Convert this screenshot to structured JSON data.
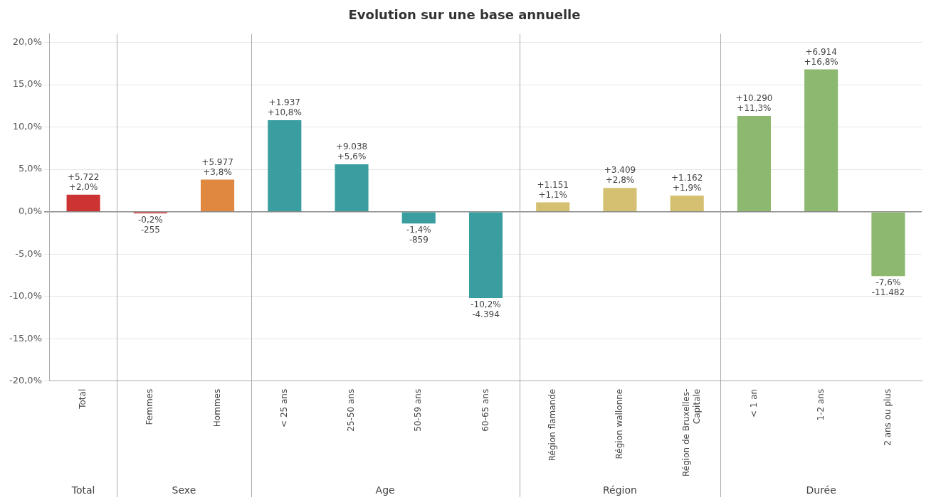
{
  "chart_data": {
    "type": "bar",
    "title": "Evolution sur une base annuelle",
    "categories": [
      "Total",
      "Femmes",
      "Hommes",
      "< 25 ans",
      "25-50 ans",
      "50-59 ans",
      "60-65 ans",
      "Région flamande",
      "Région wallonne",
      "Région de Bruxelles-\nCapitale",
      "< 1 an",
      "1-2 ans",
      "2 ans ou plus"
    ],
    "values": [
      2.0,
      -0.2,
      3.8,
      10.8,
      5.6,
      -1.4,
      -10.2,
      1.1,
      2.8,
      1.9,
      11.3,
      16.8,
      -7.6
    ],
    "value_labels": [
      "+2,0%",
      "-0,2%",
      "+3,8%",
      "+10,8%",
      "+5,6%",
      "-1,4%",
      "-10,2%",
      "+1,1%",
      "+2,8%",
      "+1,9%",
      "+11,3%",
      "+16,8%",
      "-7,6%"
    ],
    "annotations": [
      "+5.722",
      "-255",
      "+5.977",
      "+1.937",
      "+9.038",
      "-859",
      "-4.394",
      "+1.151",
      "+3.409",
      "+1.162",
      "+10.290",
      "+6.914",
      "-11.482"
    ],
    "colors": [
      "#cc3333",
      "#cc3333",
      "#e08840",
      "#3a9ea0",
      "#3a9ea0",
      "#3a9ea0",
      "#3a9ea0",
      "#d4c070",
      "#d4c070",
      "#d4c070",
      "#8db870",
      "#8db870",
      "#8db870"
    ],
    "groups": [
      {
        "name": "Total",
        "categories": [
          "Total"
        ]
      },
      {
        "name": "Sexe",
        "categories": [
          "Femmes",
          "Hommes"
        ]
      },
      {
        "name": "Age",
        "categories": [
          "< 25 ans",
          "25-50 ans",
          "50-59 ans",
          "60-65 ans"
        ]
      },
      {
        "name": "Région",
        "categories": [
          "Région flamande",
          "Région wallonne",
          "Région de Bruxelles-\nCapitale"
        ]
      },
      {
        "name": "Durée",
        "categories": [
          "< 1 an",
          "1-2 ans",
          "2 ans ou plus"
        ]
      }
    ],
    "ylim": [
      -20.0,
      21.0
    ],
    "yticks": [
      {
        "value": -20.0,
        "label": "-20,0%"
      },
      {
        "value": -15.0,
        "label": "-15,0%"
      },
      {
        "value": -10.0,
        "label": "-10,0%"
      },
      {
        "value": -5.0,
        "label": "-5,0%"
      },
      {
        "value": 0.0,
        "label": "0,0%"
      },
      {
        "value": 5.0,
        "label": "5,0%"
      },
      {
        "value": 10.0,
        "label": "10,0%"
      },
      {
        "value": 15.0,
        "label": "15,0%"
      },
      {
        "value": 20.0,
        "label": "20,0%"
      }
    ],
    "grid": true,
    "data_labels": true
  }
}
